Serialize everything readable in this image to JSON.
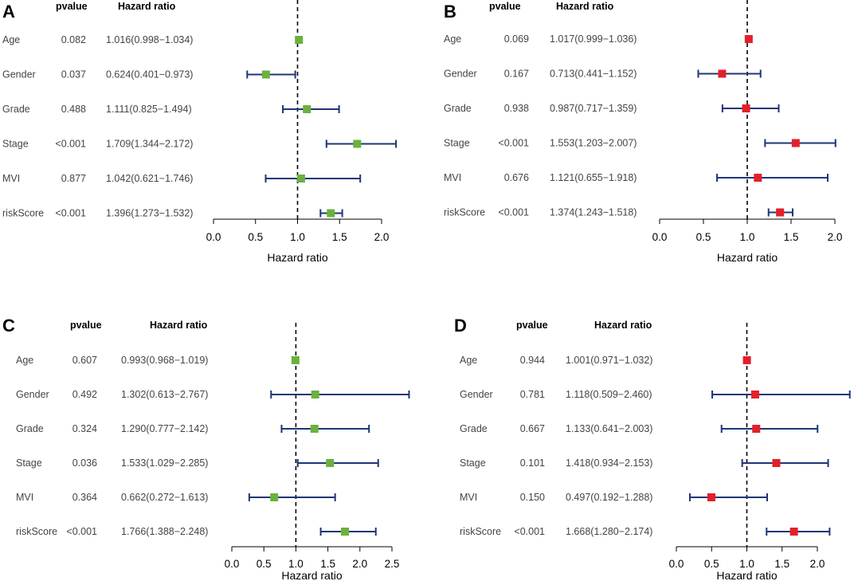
{
  "chart_data": [
    {
      "type": "forest",
      "panel": "A",
      "header_pvalue": "pvalue",
      "header_hr": "Hazard ratio",
      "marker_color": "#6bb13d",
      "whisker_color": "#1f3576",
      "xlabel": "Hazard ratio",
      "xlim": [
        0.0,
        2.0
      ],
      "xticks": [
        "0.0",
        "0.5",
        "1.0",
        "1.5",
        "2.0"
      ],
      "reference": 1.0,
      "rows": [
        {
          "name": "Age",
          "pvalue": "0.082",
          "hr_text": "1.016(0.998−1.034)",
          "hr": 1.016,
          "lo": 0.998,
          "hi": 1.034
        },
        {
          "name": "Gender",
          "pvalue": "0.037",
          "hr_text": "0.624(0.401−0.973)",
          "hr": 0.624,
          "lo": 0.401,
          "hi": 0.973
        },
        {
          "name": "Grade",
          "pvalue": "0.488",
          "hr_text": "1.111(0.825−1.494)",
          "hr": 1.111,
          "lo": 0.825,
          "hi": 1.494
        },
        {
          "name": "Stage",
          "pvalue": "<0.001",
          "hr_text": "1.709(1.344−2.172)",
          "hr": 1.709,
          "lo": 1.344,
          "hi": 2.172
        },
        {
          "name": "MVI",
          "pvalue": "0.877",
          "hr_text": "1.042(0.621−1.746)",
          "hr": 1.042,
          "lo": 0.621,
          "hi": 1.746
        },
        {
          "name": "riskScore",
          "pvalue": "<0.001",
          "hr_text": "1.396(1.273−1.532)",
          "hr": 1.396,
          "lo": 1.273,
          "hi": 1.532
        }
      ]
    },
    {
      "type": "forest",
      "panel": "B",
      "header_pvalue": "pvalue",
      "header_hr": "Hazard ratio",
      "marker_color": "#e3202a",
      "whisker_color": "#1f3576",
      "xlabel": "Hazard ratio",
      "xlim": [
        0.0,
        2.0
      ],
      "xticks": [
        "0.0",
        "0.5",
        "1.0",
        "1.5",
        "2.0"
      ],
      "reference": 1.0,
      "rows": [
        {
          "name": "Age",
          "pvalue": "0.069",
          "hr_text": "1.017(0.999−1.036)",
          "hr": 1.017,
          "lo": 0.999,
          "hi": 1.036
        },
        {
          "name": "Gender",
          "pvalue": "0.167",
          "hr_text": "0.713(0.441−1.152)",
          "hr": 0.713,
          "lo": 0.441,
          "hi": 1.152
        },
        {
          "name": "Grade",
          "pvalue": "0.938",
          "hr_text": "0.987(0.717−1.359)",
          "hr": 0.987,
          "lo": 0.717,
          "hi": 1.359
        },
        {
          "name": "Stage",
          "pvalue": "<0.001",
          "hr_text": "1.553(1.203−2.007)",
          "hr": 1.553,
          "lo": 1.203,
          "hi": 2.007
        },
        {
          "name": "MVI",
          "pvalue": "0.676",
          "hr_text": "1.121(0.655−1.918)",
          "hr": 1.121,
          "lo": 0.655,
          "hi": 1.918
        },
        {
          "name": "riskScore",
          "pvalue": "<0.001",
          "hr_text": "1.374(1.243−1.518)",
          "hr": 1.374,
          "lo": 1.243,
          "hi": 1.518
        }
      ]
    },
    {
      "type": "forest",
      "panel": "C",
      "header_pvalue": "pvalue",
      "header_hr": "Hazard ratio",
      "marker_color": "#6bb13d",
      "whisker_color": "#1f3576",
      "xlabel": "Hazard ratio",
      "xlim": [
        0.0,
        2.5
      ],
      "xticks": [
        "0.0",
        "0.5",
        "1.0",
        "1.5",
        "2.0",
        "2.5"
      ],
      "reference": 1.0,
      "rows": [
        {
          "name": "Age",
          "pvalue": "0.607",
          "hr_text": "0.993(0.968−1.019)",
          "hr": 0.993,
          "lo": 0.968,
          "hi": 1.019
        },
        {
          "name": "Gender",
          "pvalue": "0.492",
          "hr_text": "1.302(0.613−2.767)",
          "hr": 1.302,
          "lo": 0.613,
          "hi": 2.767
        },
        {
          "name": "Grade",
          "pvalue": "0.324",
          "hr_text": "1.290(0.777−2.142)",
          "hr": 1.29,
          "lo": 0.777,
          "hi": 2.142
        },
        {
          "name": "Stage",
          "pvalue": "0.036",
          "hr_text": "1.533(1.029−2.285)",
          "hr": 1.533,
          "lo": 1.029,
          "hi": 2.285
        },
        {
          "name": "MVI",
          "pvalue": "0.364",
          "hr_text": "0.662(0.272−1.613)",
          "hr": 0.662,
          "lo": 0.272,
          "hi": 1.613
        },
        {
          "name": "riskScore",
          "pvalue": "<0.001",
          "hr_text": "1.766(1.388−2.248)",
          "hr": 1.766,
          "lo": 1.388,
          "hi": 2.248
        }
      ]
    },
    {
      "type": "forest",
      "panel": "D",
      "header_pvalue": "pvalue",
      "header_hr": "Hazard ratio",
      "marker_color": "#e3202a",
      "whisker_color": "#1f3576",
      "xlabel": "Hazard ratio",
      "xlim": [
        0.0,
        2.0
      ],
      "xticks": [
        "0.0",
        "0.5",
        "1.0",
        "1.5",
        "2.0"
      ],
      "reference": 1.0,
      "rows": [
        {
          "name": "Age",
          "pvalue": "0.944",
          "hr_text": "1.001(0.971−1.032)",
          "hr": 1.001,
          "lo": 0.971,
          "hi": 1.032
        },
        {
          "name": "Gender",
          "pvalue": "0.781",
          "hr_text": "1.118(0.509−2.460)",
          "hr": 1.118,
          "lo": 0.509,
          "hi": 2.46
        },
        {
          "name": "Grade",
          "pvalue": "0.667",
          "hr_text": "1.133(0.641−2.003)",
          "hr": 1.133,
          "lo": 0.641,
          "hi": 2.003
        },
        {
          "name": "Stage",
          "pvalue": "0.101",
          "hr_text": "1.418(0.934−2.153)",
          "hr": 1.418,
          "lo": 0.934,
          "hi": 2.153
        },
        {
          "name": "MVI",
          "pvalue": "0.150",
          "hr_text": "0.497(0.192−1.288)",
          "hr": 0.497,
          "lo": 0.192,
          "hi": 1.288
        },
        {
          "name": "riskScore",
          "pvalue": "<0.001",
          "hr_text": "1.668(1.280−2.174)",
          "hr": 1.668,
          "lo": 1.28,
          "hi": 2.174
        }
      ]
    }
  ]
}
